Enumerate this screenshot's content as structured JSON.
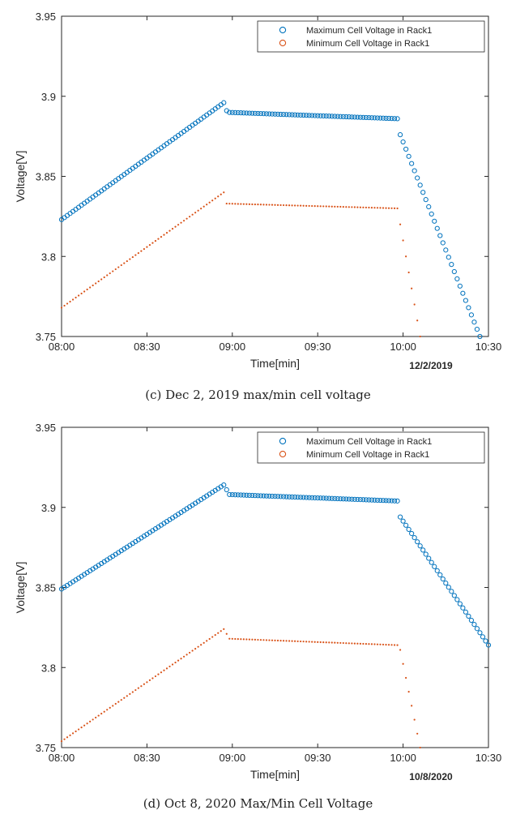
{
  "chart_data": [
    {
      "type": "scatter",
      "caption": "(c) Dec 2, 2019 max/min cell voltage",
      "date_label": "12/2/2019",
      "xlabel": "Time[min]",
      "ylabel": "Voltage[V]",
      "xlim": [
        0,
        150
      ],
      "ylim": [
        3.75,
        3.95
      ],
      "xticks": [
        0,
        30,
        60,
        90,
        120,
        150
      ],
      "xtick_labels": [
        "08:00",
        "08:30",
        "09:00",
        "09:30",
        "10:00",
        "10:30"
      ],
      "yticks": [
        3.75,
        3.8,
        3.85,
        3.9,
        3.95
      ],
      "ytick_labels": [
        "3.75",
        "3.8",
        "3.85",
        "3.9",
        "3.95"
      ],
      "grid": false,
      "legend_position": "top-right",
      "series": [
        {
          "name": "Maximum Cell Voltage in Rack1",
          "color": "#0072BD",
          "marker": "open-circle",
          "segments": [
            {
              "x": [
                0,
                57
              ],
              "y": [
                3.823,
                3.896
              ]
            },
            {
              "x": [
                57,
                58
              ],
              "y": [
                3.896,
                3.891
              ]
            },
            {
              "x": [
                58,
                118
              ],
              "y": [
                3.89,
                3.886
              ]
            },
            {
              "x": [
                118,
                119
              ],
              "y": [
                3.886,
                3.876
              ]
            },
            {
              "x": [
                119,
                147
              ],
              "y": [
                3.876,
                3.75
              ]
            }
          ]
        },
        {
          "name": "Minimum Cell Voltage in Rack1",
          "color": "#D95319",
          "marker": "dot",
          "segments": [
            {
              "x": [
                0,
                57
              ],
              "y": [
                3.768,
                3.84
              ]
            },
            {
              "x": [
                57,
                58
              ],
              "y": [
                3.84,
                3.833
              ]
            },
            {
              "x": [
                58,
                118
              ],
              "y": [
                3.833,
                3.83
              ]
            },
            {
              "x": [
                118,
                119
              ],
              "y": [
                3.83,
                3.82
              ]
            },
            {
              "x": [
                119,
                126
              ],
              "y": [
                3.82,
                3.75
              ]
            }
          ]
        }
      ]
    },
    {
      "type": "scatter",
      "caption": "(d) Oct 8, 2020 Max/Min Cell Voltage",
      "date_label": "10/8/2020",
      "xlabel": "Time[min]",
      "ylabel": "Voltage[V]",
      "xlim": [
        0,
        150
      ],
      "ylim": [
        3.75,
        3.95
      ],
      "xticks": [
        0,
        30,
        60,
        90,
        120,
        150
      ],
      "xtick_labels": [
        "08:00",
        "08:30",
        "09:00",
        "09:30",
        "10:00",
        "10:30"
      ],
      "yticks": [
        3.75,
        3.8,
        3.85,
        3.9,
        3.95
      ],
      "ytick_labels": [
        "3.75",
        "3.8",
        "3.85",
        "3.9",
        "3.95"
      ],
      "grid": false,
      "legend_position": "top-right",
      "series": [
        {
          "name": "Maximum Cell Voltage in Rack1",
          "color": "#0072BD",
          "marker": "open-circle",
          "segments": [
            {
              "x": [
                0,
                57
              ],
              "y": [
                3.849,
                3.914
              ]
            },
            {
              "x": [
                57,
                59
              ],
              "y": [
                3.914,
                3.908
              ]
            },
            {
              "x": [
                59,
                118
              ],
              "y": [
                3.908,
                3.904
              ]
            },
            {
              "x": [
                118,
                119
              ],
              "y": [
                3.904,
                3.894
              ]
            },
            {
              "x": [
                119,
                150
              ],
              "y": [
                3.894,
                3.814
              ]
            }
          ]
        },
        {
          "name": "Minimum Cell Voltage in Rack1",
          "color": "#D95319",
          "marker": "dot",
          "segments": [
            {
              "x": [
                0,
                57
              ],
              "y": [
                3.754,
                3.824
              ]
            },
            {
              "x": [
                57,
                59
              ],
              "y": [
                3.824,
                3.818
              ]
            },
            {
              "x": [
                59,
                118
              ],
              "y": [
                3.818,
                3.814
              ]
            },
            {
              "x": [
                118,
                119
              ],
              "y": [
                3.814,
                3.811
              ]
            },
            {
              "x": [
                119,
                126
              ],
              "y": [
                3.811,
                3.75
              ]
            }
          ]
        }
      ]
    }
  ]
}
